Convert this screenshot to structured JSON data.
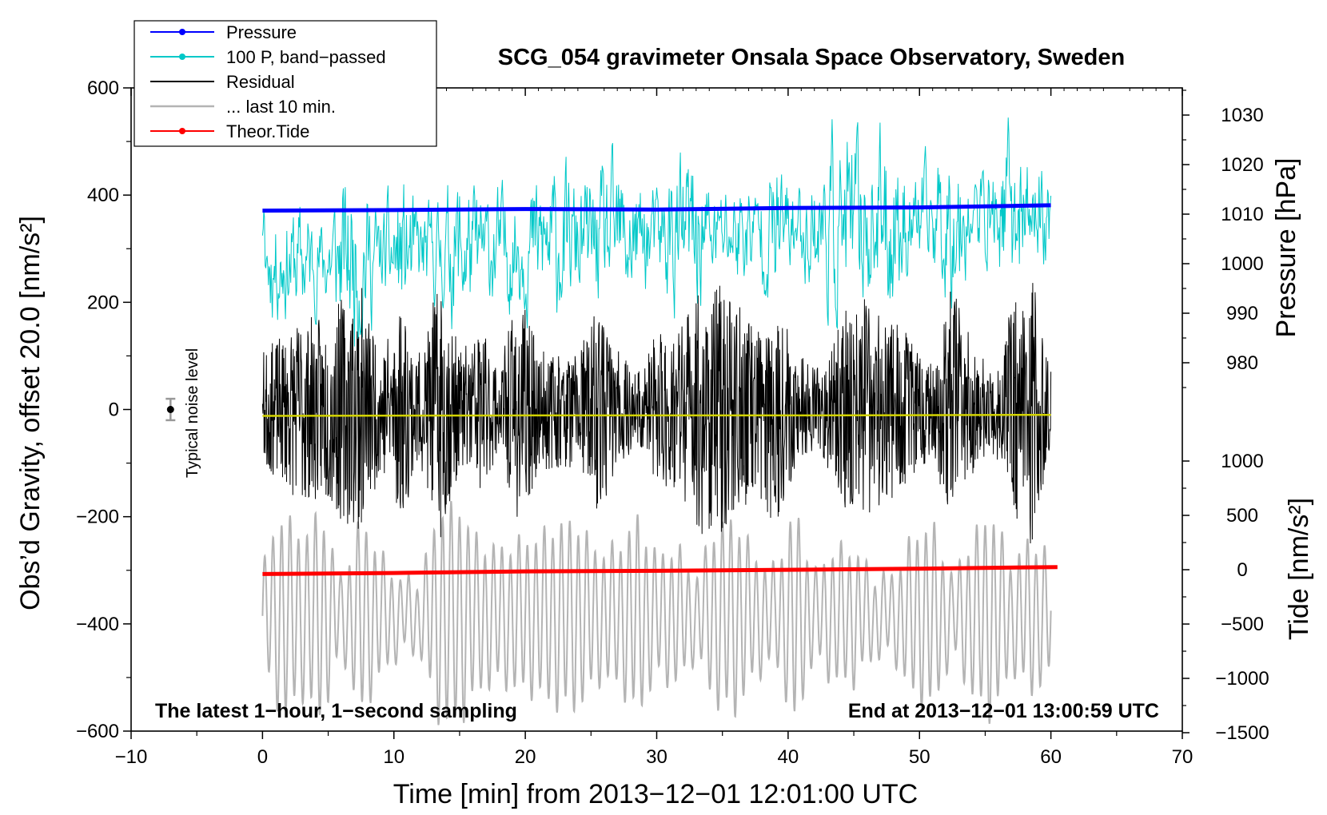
{
  "chart_data": {
    "type": "line",
    "title": "SCG_054 gravimeter Onsala Space Observatory, Sweden",
    "xlabel": "Time [min] from 2013−12−01 12:01:00 UTC",
    "ylabel_left": "Obs’d Gravity, offset 20.0 [nm/s²]",
    "ylabel_right_top": "Pressure [hPa]",
    "ylabel_right_bottom": "Tide [nm/s²]",
    "xlim": [
      -10,
      70
    ],
    "ylim": [
      -600,
      600
    ],
    "pressure_axis_ticks": [
      1030,
      1020,
      1010,
      1000,
      990,
      980
    ],
    "tide_axis_ticks": [
      1000,
      500,
      0,
      -500,
      -1000,
      -1500
    ],
    "x_tick_labels": [
      "−10",
      "0",
      "10",
      "20",
      "30",
      "40",
      "50",
      "60",
      "70"
    ],
    "y_tick_labels": [
      "600",
      "400",
      "200",
      "0",
      "−200",
      "−400",
      "−600"
    ],
    "pressure_tick_labels": [
      "1030",
      "1020",
      "1010",
      "1000",
      "990",
      "980"
    ],
    "tide_tick_labels": [
      "1000",
      "500",
      "0",
      "−500",
      "−1000",
      "−1500"
    ],
    "legend": [
      {
        "label": "Pressure",
        "color": "#0000ff",
        "marker": true
      },
      {
        "label": "100 P, band−passed",
        "color": "#00c8c8",
        "marker": true
      },
      {
        "label": "Residual",
        "color": "#000000",
        "marker": false
      },
      {
        "label": "... last 10 min.",
        "color": "#b4b4b4",
        "marker": false
      },
      {
        "label": "Theor.Tide",
        "color": "#ff0000",
        "marker": true
      }
    ],
    "series": [
      {
        "name": "Pressure",
        "color": "#0000ff",
        "x": [
          0,
          10,
          20,
          30,
          40,
          50,
          60
        ],
        "y": [
          371,
          372,
          374,
          373,
          376,
          377,
          381
        ]
      },
      {
        "name": "Theor.Tide",
        "color": "#ff0000",
        "x": [
          0,
          10,
          20,
          30,
          40,
          50,
          60.5
        ],
        "y": [
          -307,
          -305,
          -302,
          -301,
          -299,
          -297,
          -294
        ]
      },
      {
        "name": "Residual mean",
        "color": "#d2d200",
        "x": [
          0,
          20,
          40,
          60
        ],
        "y": [
          -12,
          -11,
          -11,
          -10
        ]
      },
      {
        "name": "Residual",
        "color": "#000000",
        "x_range": [
          0,
          60
        ],
        "center": 0,
        "amplitude_range": [
          60,
          270
        ]
      },
      {
        "name": "100 P, band-passed",
        "color": "#00c8c8",
        "x_range": [
          0,
          60
        ],
        "center_start": 270,
        "center_end": 370,
        "amplitude_range": [
          60,
          150
        ]
      },
      {
        "name": "... last 10 min.",
        "color": "#b4b4b4",
        "x_range": [
          0,
          60
        ],
        "center": -385,
        "amplitude_range": [
          60,
          210
        ]
      }
    ],
    "annotations": {
      "noise_label": "Typical noise level",
      "noise_marker": {
        "x": -7,
        "y": 0,
        "error": 20
      },
      "note_left": "The latest 1−hour, 1−second sampling",
      "note_right": "End at 2013−12−01 13:00:59 UTC"
    }
  }
}
